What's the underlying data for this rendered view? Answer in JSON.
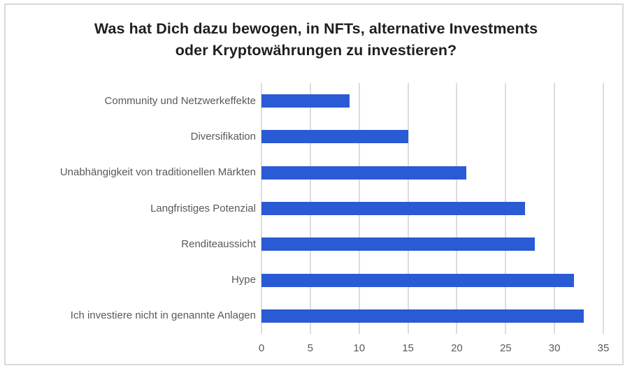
{
  "window": {
    "background": "#ffffff",
    "frame_border_color": "#d9d9d9"
  },
  "chart_data": {
    "type": "bar",
    "orientation": "horizontal",
    "title": "Was hat Dich dazu bewogen, in NFTs, alternative Investments oder Kryptowährungen zu investieren?",
    "categories": [
      "Community und Netzwerkeffekte",
      "Diversifikation",
      "Unabhängigkeit von traditionellen Märkten",
      "Langfristiges Potenzial",
      "Renditeaussicht",
      "Hype",
      "Ich investiere nicht in genannte Anlagen"
    ],
    "values": [
      9,
      15,
      21,
      27,
      28,
      32,
      33
    ],
    "xlabel": "",
    "ylabel": "",
    "xlim": [
      0,
      35
    ],
    "x_ticks": [
      0,
      5,
      10,
      15,
      20,
      25,
      30,
      35
    ],
    "grid": "vertical-only",
    "legend": "none",
    "bar_color": "#2a5ad4",
    "gridline_color": "#dcdcdc",
    "tick_label_color": "#595959",
    "category_label_color": "#595959",
    "title_color": "#1f1f1f"
  }
}
